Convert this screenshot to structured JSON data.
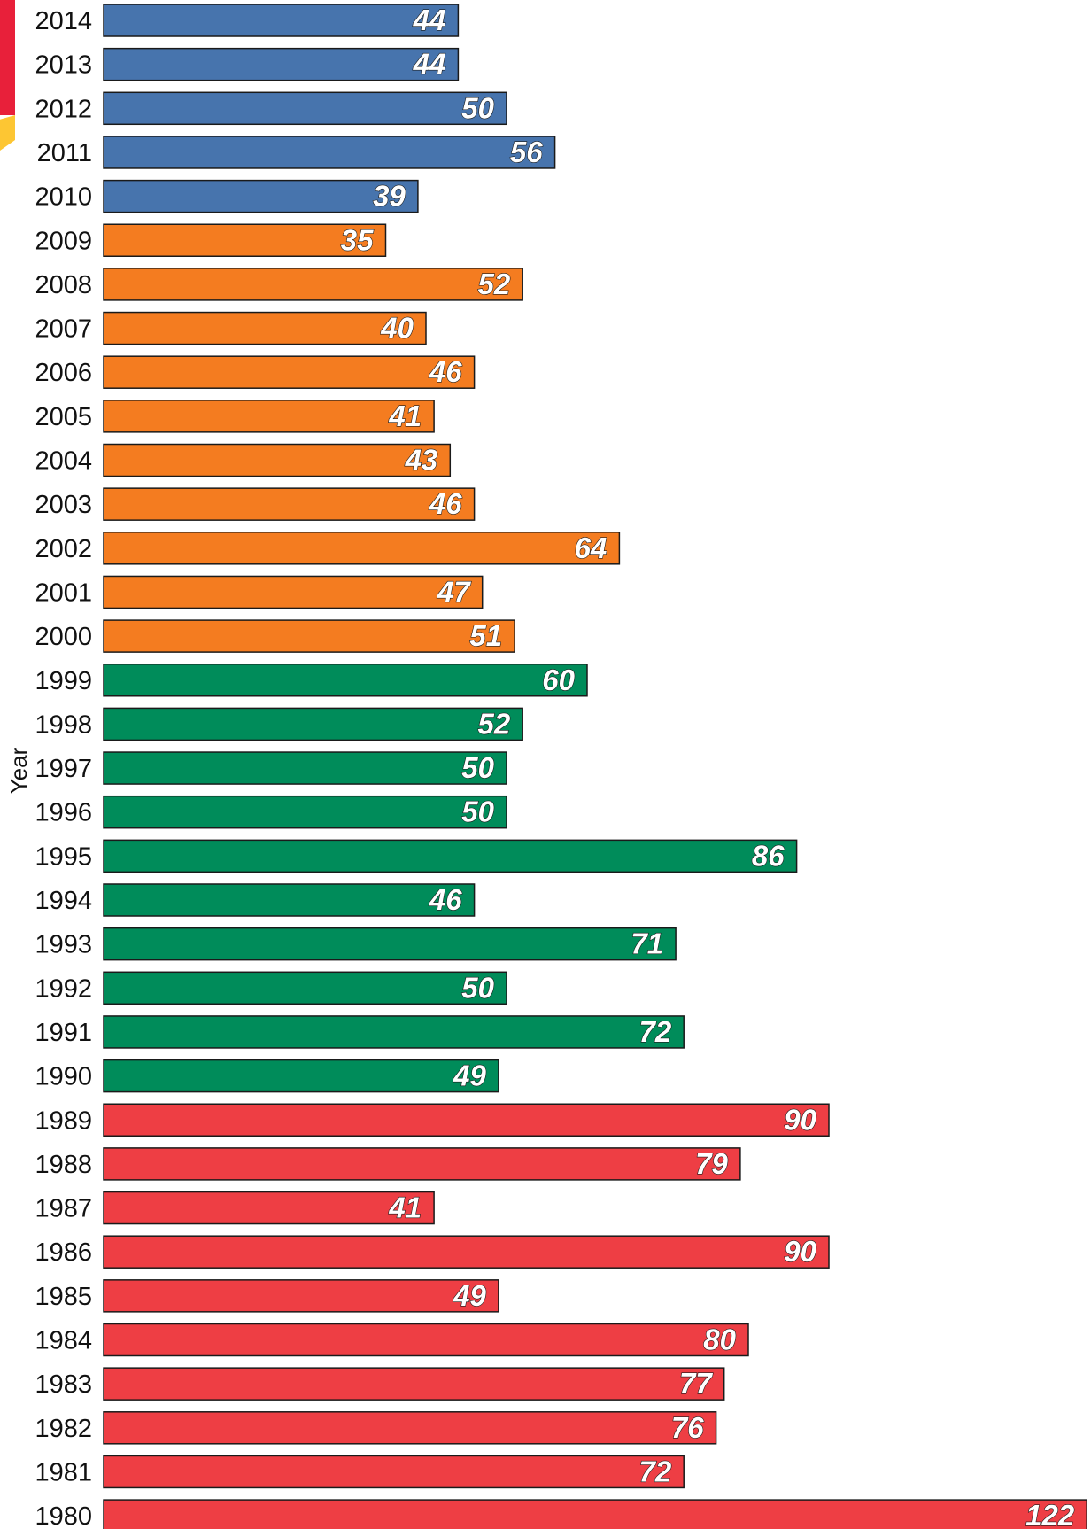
{
  "colors": {
    "2010-2014": "#4774ad",
    "2000-2009": "#f47c20",
    "1990-1999": "#008c5a",
    "1980-1989": "#ee3e44",
    "bar_outline": "#1a1a1a",
    "accent_red": "#e8203a",
    "accent_yellow": "#fdc633"
  },
  "chart_data": {
    "type": "bar",
    "orientation": "horizontal",
    "ylabel": "Year",
    "xlabel": "",
    "title": "",
    "grid": false,
    "xlim": [
      0,
      122
    ],
    "categories": [
      "2014",
      "2013",
      "2012",
      "2011",
      "2010",
      "2009",
      "2008",
      "2007",
      "2006",
      "2005",
      "2004",
      "2003",
      "2002",
      "2001",
      "2000",
      "1999",
      "1998",
      "1997",
      "1996",
      "1995",
      "1994",
      "1993",
      "1992",
      "1991",
      "1990",
      "1989",
      "1988",
      "1987",
      "1986",
      "1985",
      "1984",
      "1983",
      "1982",
      "1981",
      "1980"
    ],
    "values": [
      44,
      44,
      50,
      56,
      39,
      35,
      52,
      40,
      46,
      41,
      43,
      46,
      64,
      47,
      51,
      60,
      52,
      50,
      50,
      86,
      46,
      71,
      50,
      72,
      49,
      90,
      79,
      41,
      90,
      49,
      80,
      77,
      76,
      72,
      122
    ],
    "bar_colors": [
      "#4774ad",
      "#4774ad",
      "#4774ad",
      "#4774ad",
      "#4774ad",
      "#f47c20",
      "#f47c20",
      "#f47c20",
      "#f47c20",
      "#f47c20",
      "#f47c20",
      "#f47c20",
      "#f47c20",
      "#f47c20",
      "#f47c20",
      "#008c5a",
      "#008c5a",
      "#008c5a",
      "#008c5a",
      "#008c5a",
      "#008c5a",
      "#008c5a",
      "#008c5a",
      "#008c5a",
      "#008c5a",
      "#ee3e44",
      "#ee3e44",
      "#ee3e44",
      "#ee3e44",
      "#ee3e44",
      "#ee3e44",
      "#ee3e44",
      "#ee3e44",
      "#ee3e44",
      "#ee3e44"
    ]
  }
}
